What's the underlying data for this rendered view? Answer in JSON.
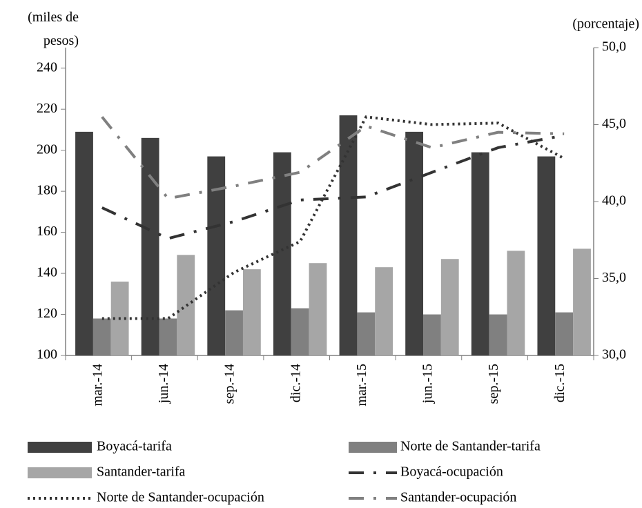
{
  "chart_data": {
    "type": "bar",
    "ylabel": "(miles de pesos)",
    "y2label": "(porcentaje)",
    "categories": [
      "mar.-14",
      "jun.-14",
      "sep.-14",
      "dic.-14",
      "mar.-15",
      "jun.-15",
      "sep.-15",
      "dic.-15"
    ],
    "ylim": [
      100,
      250
    ],
    "yticks": [
      100,
      120,
      140,
      160,
      180,
      200,
      220,
      240
    ],
    "y2lim": [
      30,
      50
    ],
    "y2ticks": [
      {
        "value": 30,
        "label": "30,0"
      },
      {
        "value": 35,
        "label": "35,0"
      },
      {
        "value": 40,
        "label": "40,0"
      },
      {
        "value": 45,
        "label": "45,0"
      },
      {
        "value": 50,
        "label": "50,0"
      }
    ],
    "series": [
      {
        "name": "Boyacá-tarifa",
        "type": "bar",
        "color": "#404040",
        "values": [
          209,
          206,
          197,
          199,
          217,
          209,
          199,
          197
        ]
      },
      {
        "name": "Norte de Santander-tarifa",
        "type": "bar",
        "color": "#808080",
        "values": [
          118,
          118,
          122,
          123,
          121,
          120,
          120,
          121
        ]
      },
      {
        "name": "Santander-tarifa",
        "type": "bar",
        "color": "#a6a6a6",
        "values": [
          136,
          149,
          142,
          145,
          143,
          147,
          151,
          152
        ]
      },
      {
        "name": "Boyacá-ocupación",
        "type": "line",
        "axis": "y2",
        "style": "dashdot",
        "color": "#333333",
        "values": [
          39.6,
          37.6,
          38.7,
          40.1,
          40.3,
          41.9,
          43.5,
          44.3
        ]
      },
      {
        "name": "Norte de Santander-ocupación",
        "type": "line",
        "axis": "y2",
        "style": "dotted",
        "color": "#333333",
        "values": [
          32.4,
          32.4,
          35.4,
          37.4,
          45.5,
          45.0,
          45.1,
          42.8
        ]
      },
      {
        "name": "Santander-ocupación",
        "type": "line",
        "axis": "y2",
        "style": "dashdot",
        "color": "#808080",
        "values": [
          45.5,
          40.2,
          41.0,
          41.9,
          44.9,
          43.5,
          44.5,
          44.4
        ]
      }
    ]
  }
}
